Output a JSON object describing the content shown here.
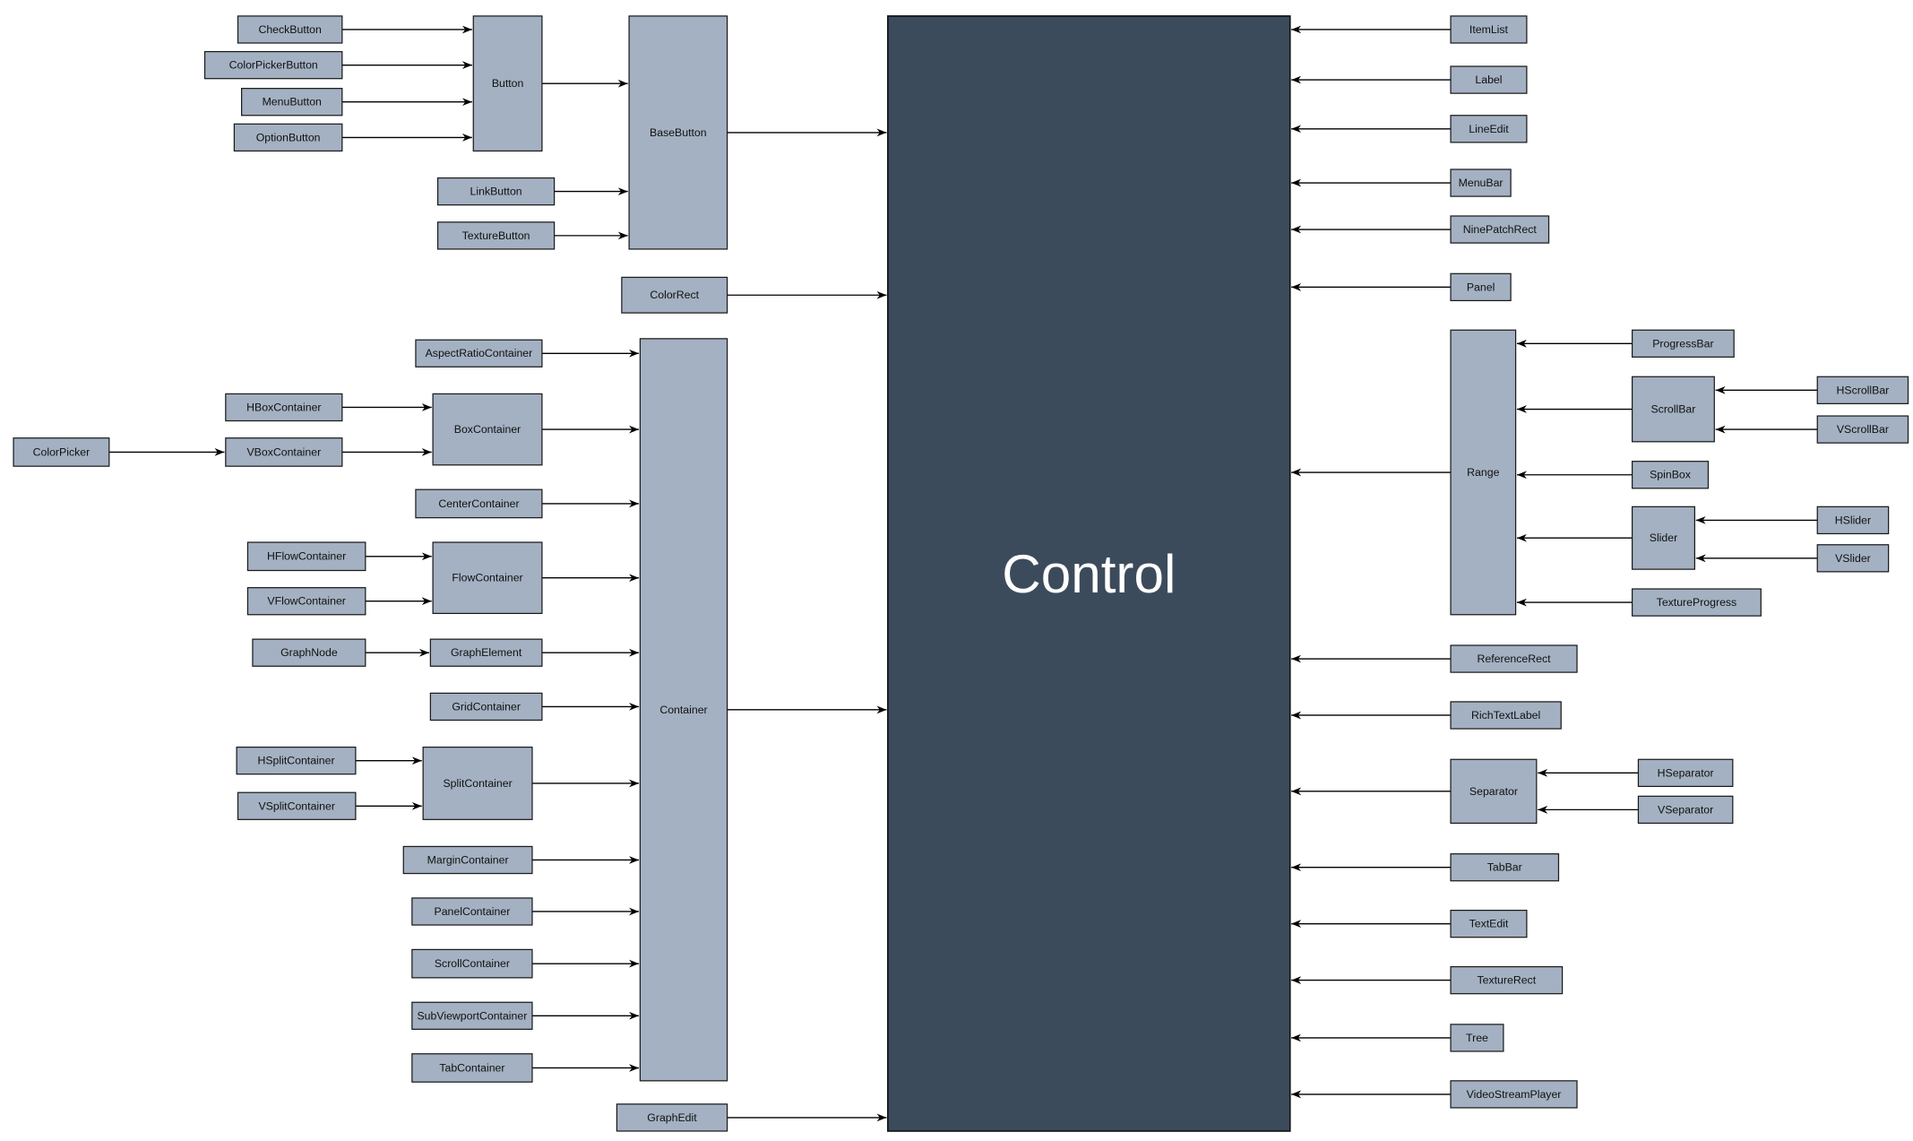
{
  "diagram": {
    "root": "Control",
    "colors": {
      "node_fill": "#a3b1c2",
      "root_fill": "#3c4b5c",
      "edge": "#000000"
    },
    "nodes": [
      {
        "name": "Control"
      },
      {
        "name": "CheckButton",
        "inherits": "Button"
      },
      {
        "name": "ColorPickerButton",
        "inherits": "Button"
      },
      {
        "name": "MenuButton",
        "inherits": "Button"
      },
      {
        "name": "OptionButton",
        "inherits": "Button"
      },
      {
        "name": "Button",
        "inherits": "BaseButton"
      },
      {
        "name": "LinkButton",
        "inherits": "BaseButton"
      },
      {
        "name": "TextureButton",
        "inherits": "BaseButton"
      },
      {
        "name": "BaseButton",
        "inherits": "Control"
      },
      {
        "name": "ColorRect",
        "inherits": "Control"
      },
      {
        "name": "AspectRatioContainer",
        "inherits": "Container"
      },
      {
        "name": "HBoxContainer",
        "inherits": "BoxContainer"
      },
      {
        "name": "ColorPicker",
        "inherits": "VBoxContainer"
      },
      {
        "name": "VBoxContainer",
        "inherits": "BoxContainer"
      },
      {
        "name": "BoxContainer",
        "inherits": "Container"
      },
      {
        "name": "CenterContainer",
        "inherits": "Container"
      },
      {
        "name": "HFlowContainer",
        "inherits": "FlowContainer"
      },
      {
        "name": "VFlowContainer",
        "inherits": "FlowContainer"
      },
      {
        "name": "FlowContainer",
        "inherits": "Container"
      },
      {
        "name": "GraphNode",
        "inherits": "GraphElement"
      },
      {
        "name": "GraphElement",
        "inherits": "Container"
      },
      {
        "name": "GridContainer",
        "inherits": "Container"
      },
      {
        "name": "HSplitContainer",
        "inherits": "SplitContainer"
      },
      {
        "name": "VSplitContainer",
        "inherits": "SplitContainer"
      },
      {
        "name": "SplitContainer",
        "inherits": "Container"
      },
      {
        "name": "MarginContainer",
        "inherits": "Container"
      },
      {
        "name": "PanelContainer",
        "inherits": "Container"
      },
      {
        "name": "ScrollContainer",
        "inherits": "Container"
      },
      {
        "name": "SubViewportContainer",
        "inherits": "Container"
      },
      {
        "name": "TabContainer",
        "inherits": "Container"
      },
      {
        "name": "Container",
        "inherits": "Control"
      },
      {
        "name": "GraphEdit",
        "inherits": "Control"
      },
      {
        "name": "ItemList",
        "inherits": "Control"
      },
      {
        "name": "Label",
        "inherits": "Control"
      },
      {
        "name": "LineEdit",
        "inherits": "Control"
      },
      {
        "name": "MenuBar",
        "inherits": "Control"
      },
      {
        "name": "NinePatchRect",
        "inherits": "Control"
      },
      {
        "name": "Panel",
        "inherits": "Control"
      },
      {
        "name": "Range",
        "inherits": "Control"
      },
      {
        "name": "ProgressBar",
        "inherits": "Range"
      },
      {
        "name": "ScrollBar",
        "inherits": "Range"
      },
      {
        "name": "HScrollBar",
        "inherits": "ScrollBar"
      },
      {
        "name": "VScrollBar",
        "inherits": "ScrollBar"
      },
      {
        "name": "SpinBox",
        "inherits": "Range"
      },
      {
        "name": "Slider",
        "inherits": "Range"
      },
      {
        "name": "HSlider",
        "inherits": "Slider"
      },
      {
        "name": "VSlider",
        "inherits": "Slider"
      },
      {
        "name": "TextureProgress",
        "inherits": "Range"
      },
      {
        "name": "ReferenceRect",
        "inherits": "Control"
      },
      {
        "name": "RichTextLabel",
        "inherits": "Control"
      },
      {
        "name": "Separator",
        "inherits": "Control"
      },
      {
        "name": "HSeparator",
        "inherits": "Separator"
      },
      {
        "name": "VSeparator",
        "inherits": "Separator"
      },
      {
        "name": "TabBar",
        "inherits": "Control"
      },
      {
        "name": "TextEdit",
        "inherits": "Control"
      },
      {
        "name": "TextureRect",
        "inherits": "Control"
      },
      {
        "name": "Tree",
        "inherits": "Control"
      },
      {
        "name": "VideoStreamPlayer",
        "inherits": "Control"
      }
    ]
  }
}
